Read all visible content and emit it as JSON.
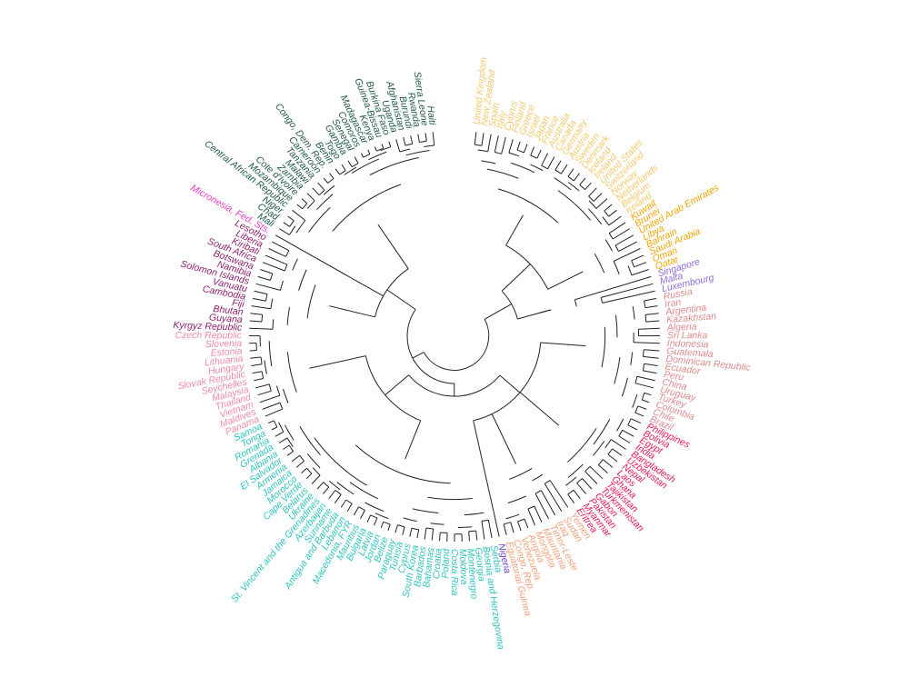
{
  "diagram": {
    "type": "circular-dendrogram",
    "groups": [
      {
        "id": "g1",
        "color": "#f5c86c",
        "leaves": [
          "United Kingdom",
          "New Zealand",
          "Spain",
          "Italy",
          "Cyprus",
          "Finland",
          "Greece",
          "Israel",
          "Japan",
          "France",
          "Australia",
          "Canada",
          "Germany",
          "Austria",
          "Sweden",
          "Denmark",
          "Iceland",
          "Ireland",
          "United States",
          "Switzerland",
          "Norway",
          "Netherlands",
          "Belgium",
          "Ireland"
        ]
      },
      {
        "id": "g2",
        "color": "#f2a500",
        "leaves": [
          "Kuwait",
          "Brunei",
          "United Arab Emirates",
          "Libya",
          "Bahrain",
          "Saudi Arabia",
          "Oman",
          "Qatar"
        ]
      },
      {
        "id": "g3",
        "color": "#8a6fdc",
        "leaves": [
          "Singapore",
          "Malta",
          "Luxembourg"
        ]
      },
      {
        "id": "g4",
        "color": "#e08a8a",
        "leaves": [
          "Russia",
          "Iran",
          "Argentina",
          "Kazakhstan",
          "Algeria",
          "Sri Lanka",
          "Indonesia",
          "Guatemala",
          "Dominican Republic",
          "Ecuador",
          "Peru",
          "China",
          "Uruguay",
          "Turkey",
          "Colombia",
          "Chile",
          "Brazil"
        ]
      },
      {
        "id": "g5",
        "color": "#e8195a",
        "leaves": [
          "Philippines",
          "Bolivia",
          "Egypt",
          "India",
          "Bangladesh",
          "Uzbekistan",
          "Nepal",
          "Laos",
          "Ghana",
          "Tajikistan",
          "Turkmenistan",
          "Gabon",
          "Pakistan",
          "Myanmar",
          "Eritrea"
        ]
      },
      {
        "id": "g6",
        "color": "#f5a07a",
        "leaves": [
          "Yemen",
          "Sudan",
          "Iraq",
          "Timor-Leste",
          "Mauritania",
          "Mongolia",
          "Angola",
          "Venezuela",
          "Congo, Rep.",
          "Equatorial Guinea"
        ]
      },
      {
        "id": "g7",
        "color": "#6b3fc4",
        "leaves": [
          "Nigeria"
        ]
      },
      {
        "id": "g8",
        "color": "#2ec4c0",
        "leaves": [
          "Serbia",
          "Bosnia and Herzegovina",
          "Georgia",
          "Montenegro",
          "Moldova",
          "Costa Rica",
          "Poland",
          "Croatia",
          "Bahamas",
          "Barbados",
          "South Korea",
          "Cyprus",
          "Tunisia",
          "Paraguay",
          "Belize",
          "Jordan",
          "Latvia",
          "Bulgaria",
          "Mauritius",
          "Macedonia, FYR",
          "Lebanon",
          "Antigua and Barbuda",
          "Suriname",
          "Azerbaijan",
          "St. Vincent and the Grenadines",
          "Ukraine",
          "Belarus",
          "Cape Verde",
          "Morocco",
          "Jamaica",
          "Armenia",
          "El Salvador",
          "Albania",
          "Grenada",
          "Romania",
          "Tonga",
          "Samoa"
        ]
      },
      {
        "id": "g9",
        "color": "#f08aa8",
        "leaves": [
          "Panama",
          "Maldives",
          "Vietnam",
          "Thailand",
          "Malaysia",
          "Seychelles",
          "Slovak Republic",
          "Hungary",
          "Lithuania",
          "Estonia",
          "Slovenia",
          "Czech Republic"
        ]
      },
      {
        "id": "g10",
        "color": "#8b1f6e",
        "leaves": [
          "Kyrgyz Republic",
          "Guyana",
          "Bhutan",
          "Fiji",
          "Cambodia",
          "Vanuatu",
          "Solomon Islands",
          "Namibia",
          "Botswana",
          "South Africa",
          "Kiribati",
          "Liberia",
          "Lesotho"
        ]
      },
      {
        "id": "g11",
        "color": "#e83ac8",
        "leaves": [
          "Micronesia, Fed. Sts."
        ]
      },
      {
        "id": "g12",
        "color": "#1f5a4a",
        "leaves": [
          "Mali",
          "Chad",
          "Niger",
          "Central African Republic",
          "Mozambique",
          "Cote d'Ivoire",
          "Zambia",
          "Malawi",
          "Tanzania",
          "Cameroon",
          "Congo, Dem. Rep.",
          "Benin",
          "Togo",
          "Gambia",
          "Senegal",
          "Comoros",
          "Madagascar",
          "Kenya",
          "Guinea-Bissau",
          "Burkina Faso",
          "Uganda",
          "Afghanistan",
          "Burundi",
          "Rwanda",
          "Sierra Leone",
          "Haiti"
        ]
      }
    ]
  }
}
